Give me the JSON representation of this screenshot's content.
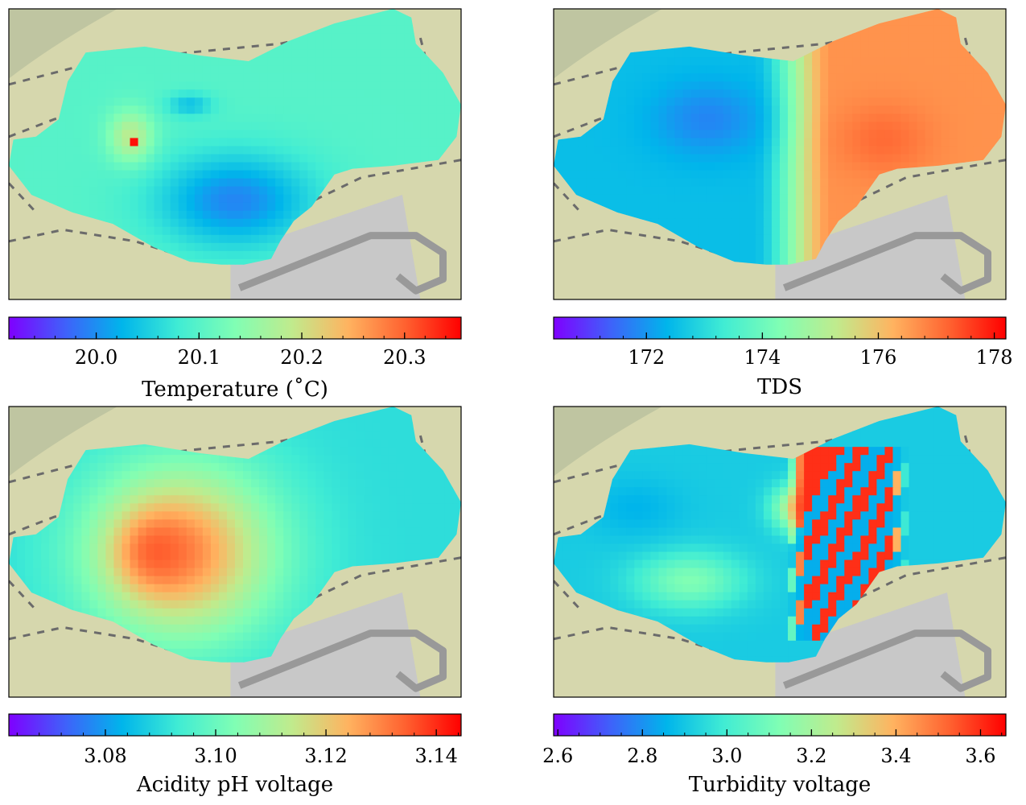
{
  "figure": {
    "background": "#ffffff",
    "map_colors": {
      "land": "#d6d7ad",
      "green": "#b9c19d",
      "path_dash": "#6b6b6b",
      "road": "#999999",
      "lot": "#c8c8c8"
    }
  },
  "chart_data": [
    {
      "type": "heatmap",
      "panel": "top-left",
      "colormap": "rainbow",
      "colorbar": {
        "label": "Temperature ($^\\circ$C)",
        "label_text": "Temperature (˚C)",
        "range": [
          19.915,
          20.355
        ],
        "ticks": [
          20.0,
          20.1,
          20.2,
          20.3
        ],
        "tick_labels": [
          "20.0",
          "20.1",
          "20.2",
          "20.3"
        ],
        "minor_step": 0.02
      },
      "field": {
        "base": 0.42,
        "blobs": [
          {
            "cx": 0.5,
            "cy": 0.66,
            "rx": 0.17,
            "ry": 0.16,
            "v": 0.18
          },
          {
            "cx": 0.27,
            "cy": 0.44,
            "rx": 0.05,
            "ry": 0.09,
            "v": 0.62
          },
          {
            "cx": 0.4,
            "cy": 0.33,
            "rx": 0.05,
            "ry": 0.04,
            "v": 0.28
          }
        ],
        "hot_spot": {
          "cx": 0.28,
          "cy": 0.45,
          "v": 0.98
        }
      },
      "grid": false
    },
    {
      "type": "heatmap",
      "panel": "top-right",
      "colormap": "rainbow",
      "colorbar": {
        "label": "TDS",
        "label_text": "TDS",
        "range": [
          170.4,
          178.2
        ],
        "ticks": [
          172,
          174,
          176,
          178
        ],
        "tick_labels": [
          "172",
          "174",
          "176",
          "178"
        ],
        "minor_step": 0.4
      },
      "field": {
        "gradient": {
          "x0": 0.44,
          "x1": 0.62,
          "left": 0.27,
          "right": 0.8
        },
        "blobs": [
          {
            "cx": 0.34,
            "cy": 0.38,
            "rx": 0.12,
            "ry": 0.13,
            "v": 0.18
          },
          {
            "cx": 0.73,
            "cy": 0.45,
            "rx": 0.1,
            "ry": 0.12,
            "v": 0.86
          }
        ]
      },
      "grid": false
    },
    {
      "type": "heatmap",
      "panel": "bottom-left",
      "colormap": "rainbow",
      "colorbar": {
        "label": "Acidity pH voltage",
        "label_text": "Acidity pH voltage",
        "range": [
          3.0625,
          3.1445
        ],
        "ticks": [
          3.08,
          3.1,
          3.12,
          3.14
        ],
        "tick_labels": [
          "3.08",
          "3.10",
          "3.12",
          "3.14"
        ],
        "minor_step": 0.004
      },
      "field": {
        "base": 0.34,
        "blobs": [
          {
            "cx": 0.38,
            "cy": 0.5,
            "rx": 0.21,
            "ry": 0.3,
            "v": 0.8
          },
          {
            "cx": 0.33,
            "cy": 0.5,
            "rx": 0.08,
            "ry": 0.12,
            "v": 0.88
          }
        ]
      },
      "grid": false
    },
    {
      "type": "heatmap",
      "panel": "bottom-right",
      "colormap": "rainbow",
      "colorbar": {
        "label": "Turbidity voltage",
        "label_text": "Turbidity voltage",
        "range": [
          2.59,
          3.66
        ],
        "ticks": [
          2.6,
          2.8,
          3.0,
          3.2,
          3.4,
          3.6
        ],
        "tick_labels": [
          "2.6",
          "2.8",
          "3.0",
          "3.2",
          "3.4",
          "3.6"
        ],
        "minor_step": 0.05
      },
      "field": {
        "base": 0.3,
        "stripes": {
          "x0": 0.52,
          "x1": 0.78,
          "period": 0.06,
          "high": 0.94,
          "low": 0.24
        },
        "blobs": [
          {
            "cx": 0.3,
            "cy": 0.6,
            "rx": 0.12,
            "ry": 0.1,
            "v": 0.5
          },
          {
            "cx": 0.18,
            "cy": 0.35,
            "rx": 0.1,
            "ry": 0.1,
            "v": 0.25
          },
          {
            "cx": 0.55,
            "cy": 0.35,
            "rx": 0.06,
            "ry": 0.08,
            "v": 0.72
          }
        ]
      },
      "grid": false
    }
  ]
}
